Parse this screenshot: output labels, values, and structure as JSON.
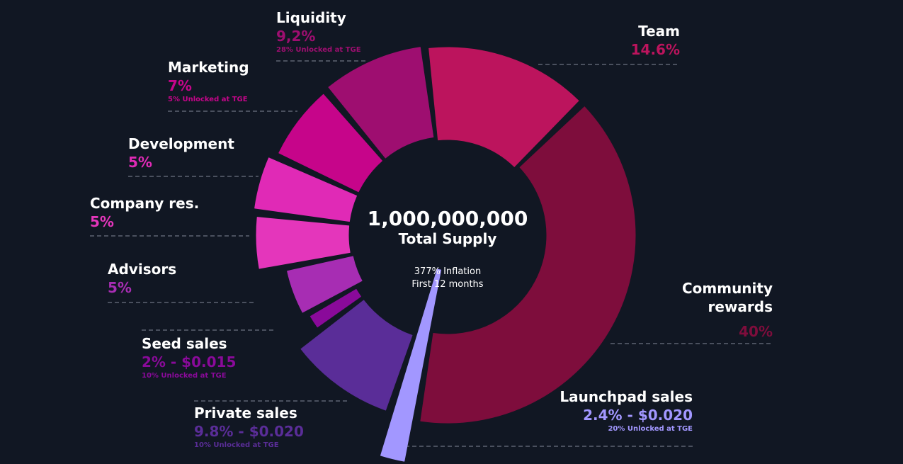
{
  "center": {
    "amount": "1,000,000,000",
    "title": "Total Supply",
    "inflation": "377% Inflation",
    "period": "First 12 months"
  },
  "labels": {
    "liquidity": {
      "name": "Liquidity",
      "pct": "9,2%",
      "note": "28% Unlocked at TGE"
    },
    "team": {
      "name": "Team",
      "pct": "14.6%"
    },
    "marketing": {
      "name": "Marketing",
      "pct": "7%",
      "note": "5% Unlocked at TGE"
    },
    "development": {
      "name": "Development",
      "pct": "5%"
    },
    "company": {
      "name": "Company res.",
      "pct": "5%"
    },
    "advisors": {
      "name": "Advisors",
      "pct": "5%"
    },
    "community": {
      "name_line1": "Community",
      "name_line2": "rewards",
      "pct": "40%"
    },
    "seed": {
      "name": "Seed sales",
      "pct": "2% - $0.015",
      "note": "10% Unlocked at TGE"
    },
    "private": {
      "name": "Private sales",
      "pct": "9.8% - $0.020",
      "note": "10% Unlocked at TGE"
    },
    "launchpad": {
      "name": "Launchpad sales",
      "pct": "2.4% - $0.020",
      "note": "20% Unlocked at TGE"
    }
  },
  "chart_data": {
    "type": "pie",
    "categories": [
      "Team",
      "Community rewards",
      "Launchpad sales",
      "Private sales",
      "Seed sales",
      "Advisors",
      "Company res.",
      "Development",
      "Marketing",
      "Liquidity"
    ],
    "values": [
      14.6,
      40,
      2.4,
      9.8,
      2,
      5,
      5,
      5,
      7,
      9.2
    ],
    "colors": [
      "#bc145d",
      "#7e0d3c",
      "#a297ff",
      "#5a2d98",
      "#8a0a9a",
      "#a72db3",
      "#e436bb",
      "#e02ab6",
      "#c6058a",
      "#9e0e70"
    ]
  }
}
